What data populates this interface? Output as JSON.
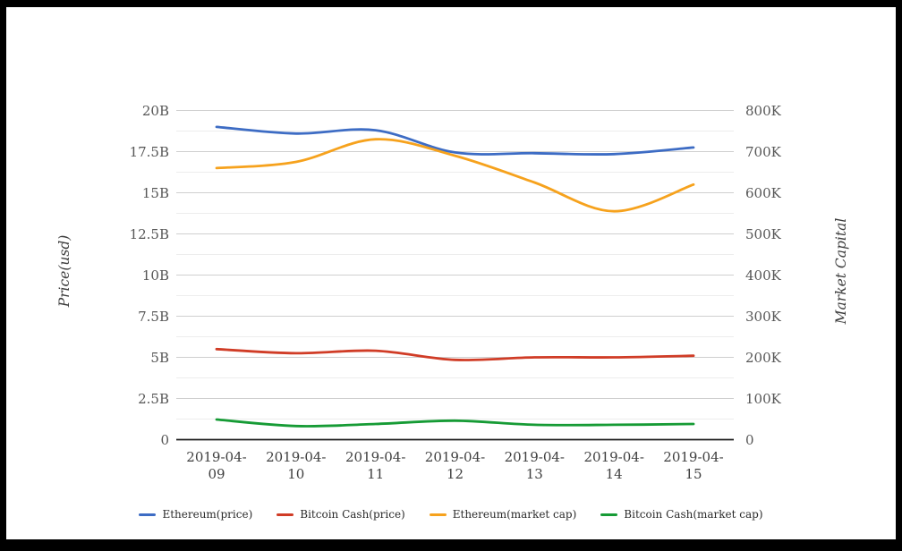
{
  "chart_data": {
    "type": "line",
    "title": "",
    "categories": [
      "2019-04-09",
      "2019-04-10",
      "2019-04-11",
      "2019-04-12",
      "2019-04-13",
      "2019-04-14",
      "2019-04-15"
    ],
    "series": [
      {
        "name": "Ethereum(price)",
        "axis": "left",
        "color": "#3d6cc4",
        "unit": "B",
        "values": [
          19.0,
          18.6,
          18.8,
          17.45,
          17.4,
          17.35,
          17.75
        ]
      },
      {
        "name": "Bitcoin Cash(price)",
        "axis": "left",
        "color": "#d03c26",
        "unit": "B",
        "values": [
          5.5,
          5.25,
          5.4,
          4.85,
          5.0,
          5.0,
          5.1
        ]
      },
      {
        "name": "Ethereum(market cap)",
        "axis": "right",
        "color": "#f6a21d",
        "unit": "K",
        "values": [
          660,
          675,
          730,
          690,
          625,
          555,
          620
        ]
      },
      {
        "name": "Bitcoin Cash(market cap)",
        "axis": "right",
        "color": "#169b35",
        "unit": "K",
        "values": [
          49,
          33,
          38,
          46,
          36,
          36,
          38
        ]
      }
    ],
    "left_axis": {
      "label": "Price(usd)",
      "min": 0,
      "max": 20,
      "unit": "B",
      "ticks": [
        "0",
        "2.5B",
        "5B",
        "7.5B",
        "10B",
        "12.5B",
        "15B",
        "17.5B",
        "20B"
      ]
    },
    "right_axis": {
      "label": "Market Capital",
      "min": 0,
      "max": 800,
      "unit": "K",
      "ticks": [
        "0",
        "100K",
        "200K",
        "300K",
        "400K",
        "500K",
        "600K",
        "700K",
        "800K"
      ]
    },
    "grid": {
      "major_color": "#cfcfcf",
      "minor_color": "#ededed",
      "baseline_color": "#1c1c1c",
      "major_interval_left": "2.5B",
      "minor_interval_left": "1.25B"
    },
    "legend": {
      "position": "bottom",
      "items": [
        "Ethereum(price)",
        "Bitcoin Cash(price)",
        "Ethereum(market cap)",
        "Bitcoin Cash(market cap)"
      ]
    }
  }
}
